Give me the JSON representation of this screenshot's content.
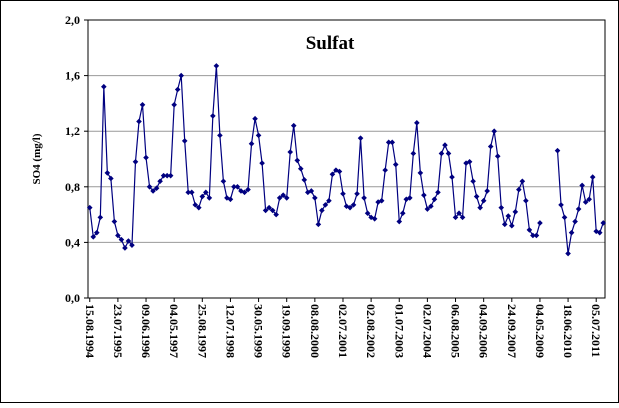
{
  "chart_data": {
    "type": "line",
    "title": "Sulfat",
    "y_label": "SO4 (mg/l)",
    "categories": [
      "15.08.1994",
      null,
      null,
      null,
      null,
      null,
      null,
      null,
      "23.07.1995",
      null,
      null,
      null,
      null,
      null,
      null,
      null,
      "09.06.1996",
      null,
      null,
      null,
      null,
      null,
      null,
      null,
      "04.05.1997",
      null,
      null,
      null,
      null,
      null,
      null,
      null,
      "25.08.1997",
      null,
      null,
      null,
      null,
      null,
      null,
      null,
      "12.07.1998",
      null,
      null,
      null,
      null,
      null,
      null,
      null,
      "30.05.1999",
      null,
      null,
      null,
      null,
      null,
      null,
      null,
      "19.09.1999",
      null,
      null,
      null,
      null,
      null,
      null,
      null,
      "08.08.2000",
      null,
      null,
      null,
      null,
      null,
      null,
      null,
      "02.07.2001",
      null,
      null,
      null,
      null,
      null,
      null,
      null,
      "02.08.2002",
      null,
      null,
      null,
      null,
      null,
      null,
      null,
      "01.07.2003",
      null,
      null,
      null,
      null,
      null,
      null,
      null,
      "02.07.2004",
      null,
      null,
      null,
      null,
      null,
      null,
      null,
      "06.08.2005",
      null,
      null,
      null,
      null,
      null,
      null,
      null,
      "04.09.2006",
      null,
      null,
      null,
      null,
      null,
      null,
      null,
      "24.09.2007",
      null,
      null,
      null,
      null,
      null,
      null,
      null,
      "04.05.2009",
      null,
      null,
      null,
      null,
      null,
      null,
      null,
      "18.06.2010",
      null,
      null,
      null,
      null,
      null,
      null,
      null,
      "05.07.2011",
      null,
      null
    ],
    "series": [
      {
        "name": "SO4",
        "color": "#000080",
        "values": [
          0.65,
          0.44,
          0.47,
          0.58,
          1.52,
          0.9,
          0.86,
          0.55,
          0.45,
          0.42,
          0.36,
          0.41,
          0.38,
          0.98,
          1.27,
          1.39,
          1.01,
          0.8,
          0.77,
          0.79,
          0.84,
          0.88,
          0.88,
          0.88,
          1.39,
          1.5,
          1.6,
          1.13,
          0.76,
          0.76,
          0.67,
          0.65,
          0.73,
          0.76,
          0.72,
          1.31,
          1.67,
          1.17,
          0.84,
          0.72,
          0.71,
          0.8,
          0.8,
          0.77,
          0.76,
          0.78,
          1.11,
          1.29,
          1.17,
          0.97,
          0.63,
          0.65,
          0.63,
          0.6,
          0.72,
          0.74,
          0.72,
          1.05,
          1.24,
          0.99,
          0.93,
          0.85,
          0.76,
          0.77,
          0.72,
          0.53,
          0.63,
          0.67,
          0.7,
          0.89,
          0.92,
          0.91,
          0.75,
          0.66,
          0.65,
          0.67,
          0.75,
          1.15,
          0.72,
          0.61,
          0.58,
          0.57,
          0.69,
          0.7,
          0.92,
          1.12,
          1.12,
          0.96,
          0.55,
          0.61,
          0.71,
          0.72,
          1.04,
          1.26,
          0.9,
          0.74,
          0.64,
          0.66,
          0.71,
          0.76,
          1.04,
          1.1,
          1.04,
          0.87,
          0.58,
          0.61,
          0.58,
          0.97,
          0.98,
          0.84,
          0.73,
          0.65,
          0.7,
          0.77,
          1.09,
          1.2,
          1.02,
          0.65,
          0.53,
          0.59,
          0.52,
          0.62,
          0.78,
          0.84,
          0.7,
          0.49,
          0.45,
          0.45,
          0.54,
          null,
          null,
          null,
          null,
          1.06,
          0.67,
          0.58,
          0.32,
          0.47,
          0.55,
          0.64,
          0.81,
          0.69,
          0.71,
          0.87,
          0.48,
          0.47,
          0.54
        ]
      }
    ],
    "ylim": [
      0,
      2
    ],
    "yticks": [
      {
        "value": 0,
        "label": "0,0"
      },
      {
        "value": 0.4,
        "label": "0,4"
      },
      {
        "value": 0.8,
        "label": "0,8"
      },
      {
        "value": 1.2,
        "label": "1,2"
      },
      {
        "value": 1.6,
        "label": "1,6"
      },
      {
        "value": 2,
        "label": "2,0"
      }
    ],
    "grid": true
  }
}
